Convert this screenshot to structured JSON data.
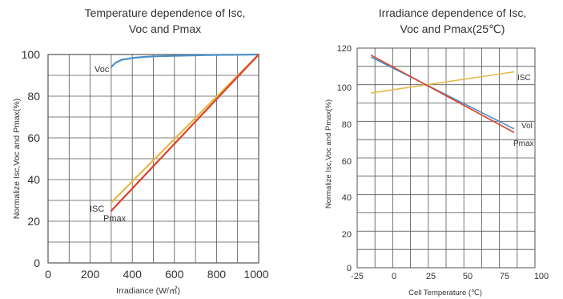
{
  "chart_data": [
    {
      "type": "line",
      "title_lines": [
        "Temperature dependence of Isc,",
        "Voc and Pmax"
      ],
      "xlabel": "Irradiance (W/㎡)",
      "ylabel": "Normalize Isc,Voc and Pmax(%)",
      "xlim": [
        0,
        1000
      ],
      "ylim": [
        0,
        100
      ],
      "xticks": [
        "0",
        "200",
        "400",
        "600",
        "800",
        "1000"
      ],
      "yticks": [
        "0",
        "20",
        "40",
        "60",
        "80",
        "100"
      ],
      "grid": true,
      "series": [
        {
          "name": "Voc",
          "label_text": "Voc",
          "color": "#4a90c8",
          "x": [
            300,
            320,
            350,
            400,
            450,
            500,
            600,
            700,
            800,
            900,
            1000
          ],
          "y": [
            94,
            96,
            97.5,
            98.3,
            98.8,
            99.1,
            99.4,
            99.6,
            99.8,
            99.9,
            100
          ]
        },
        {
          "name": "ISC",
          "label_text": "ISC",
          "color": "#e6b84a",
          "x": [
            300,
            1000
          ],
          "y": [
            29,
            100
          ]
        },
        {
          "name": "Pmax",
          "label_text": "Pmax",
          "color": "#d9432b",
          "x": [
            300,
            1000
          ],
          "y": [
            25,
            100
          ]
        }
      ]
    },
    {
      "type": "line",
      "title_lines": [
        "Irradiance dependence of Isc,",
        "Voc and Pmax(25℃)"
      ],
      "xlabel": "Cell Temperature (℃)",
      "ylabel": "Normalize Isc,Voc and Pmax(%)",
      "xlim": [
        -25,
        100
      ],
      "ylim": [
        0,
        120
      ],
      "xticks": [
        "-25",
        "0",
        "25",
        "50",
        "75",
        "100"
      ],
      "yticks": [
        "0",
        "20",
        "40",
        "60",
        "80",
        "100",
        "120"
      ],
      "grid": true,
      "series": [
        {
          "name": "ISC",
          "label_text": "ISC",
          "color": "#e6b84a",
          "x": [
            -15,
            85
          ],
          "y": [
            95.5,
            107
          ]
        },
        {
          "name": "Voc",
          "label_text": "Vol",
          "color": "#4a90c8",
          "x": [
            -15,
            85
          ],
          "y": [
            115,
            76
          ]
        },
        {
          "name": "Pmax",
          "label_text": "Pmax",
          "color": "#d9432b",
          "x": [
            -15,
            85
          ],
          "y": [
            116,
            74
          ]
        }
      ]
    }
  ]
}
